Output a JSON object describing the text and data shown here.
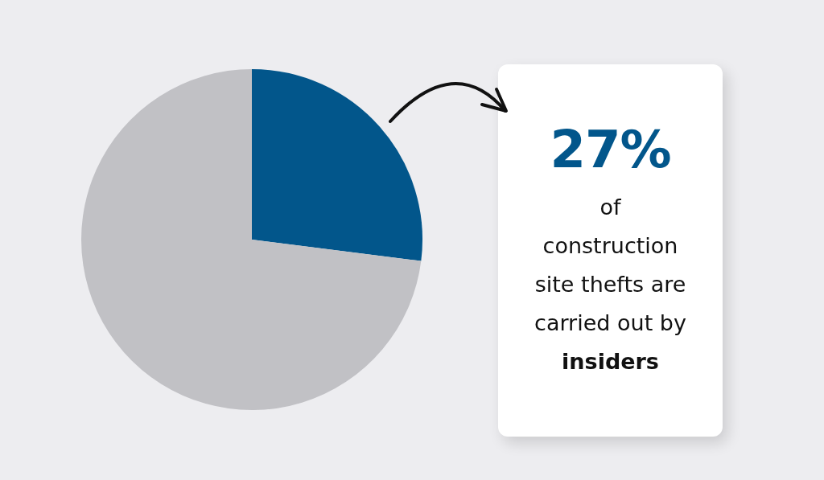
{
  "chart_data": {
    "type": "pie",
    "categories": [
      null,
      null
    ],
    "values": [
      27,
      73
    ],
    "colors": [
      "#02568b",
      "#c1c1c5"
    ],
    "annotations": [
      "27%",
      "of construction site thefts are carried out by",
      "insiders"
    ]
  }
}
